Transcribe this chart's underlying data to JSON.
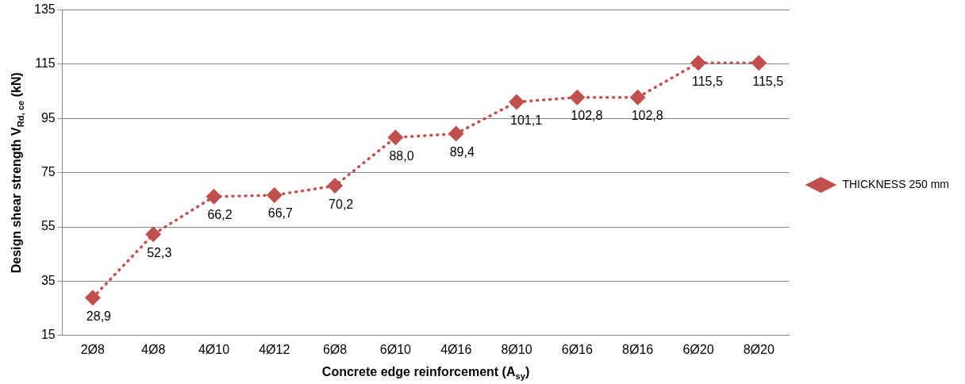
{
  "chart_data": {
    "type": "line",
    "xlabel": "Concrete edge reinforcement (A$_{sy}$)",
    "ylabel": "Design shear strength V$_{Rd, ce}$ (kN)",
    "categories": [
      "2Ø8",
      "4Ø8",
      "4Ø10",
      "4Ø12",
      "6Ø8",
      "6Ø10",
      "4Ø16",
      "8Ø10",
      "6Ø16",
      "8Ø16",
      "6Ø20",
      "8Ø20"
    ],
    "series": [
      {
        "name": "THICKNESS 250 mm",
        "color": "#c0504d",
        "values": [
          28.9,
          52.3,
          66.2,
          66.7,
          70.2,
          88.0,
          89.4,
          101.1,
          102.8,
          102.8,
          115.5,
          115.5
        ],
        "value_labels": [
          "28,9",
          "52,3",
          "66,2",
          "66,7",
          "70,2",
          "88,0",
          "89,4",
          "101,1",
          "102,8",
          "102,8",
          "115,5",
          "115,5"
        ]
      }
    ],
    "ylim": [
      15,
      135
    ],
    "yticks": [
      15,
      35,
      55,
      75,
      95,
      115,
      135
    ],
    "grid": "y",
    "legend": "right",
    "marker": "diamond",
    "line_style": "dotted"
  }
}
